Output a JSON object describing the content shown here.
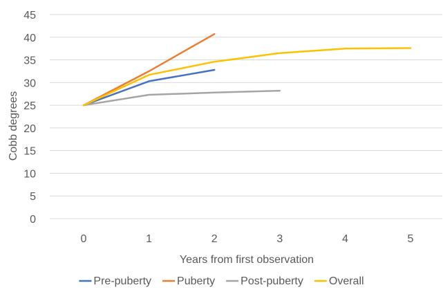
{
  "chart_data": {
    "type": "line",
    "title": "",
    "xlabel": "Years from first observation",
    "ylabel": "Cobb degrees",
    "xlim": [
      0,
      5
    ],
    "ylim": [
      0,
      45
    ],
    "x_ticks": [
      "0",
      "1",
      "2",
      "3",
      "4",
      "5"
    ],
    "y_ticks": [
      "0",
      "5",
      "10",
      "15",
      "20",
      "25",
      "30",
      "35",
      "40",
      "45"
    ],
    "grid": true,
    "legend_position": "bottom",
    "series": [
      {
        "name": "Pre-puberty",
        "color": "#4472C4",
        "x": [
          0,
          1,
          2
        ],
        "values": [
          25,
          30.3,
          32.8
        ]
      },
      {
        "name": "Puberty",
        "color": "#ED7D31",
        "x": [
          0,
          1,
          2
        ],
        "values": [
          25,
          32.5,
          40.7
        ]
      },
      {
        "name": "Post-puberty",
        "color": "#A5A5A5",
        "x": [
          0,
          1,
          2,
          3
        ],
        "values": [
          25,
          27.3,
          27.8,
          28.2
        ]
      },
      {
        "name": "Overall",
        "color": "#FFC000",
        "x": [
          0,
          1,
          2,
          3,
          4,
          5
        ],
        "values": [
          25,
          31.7,
          34.6,
          36.5,
          37.5,
          37.6
        ]
      }
    ]
  }
}
